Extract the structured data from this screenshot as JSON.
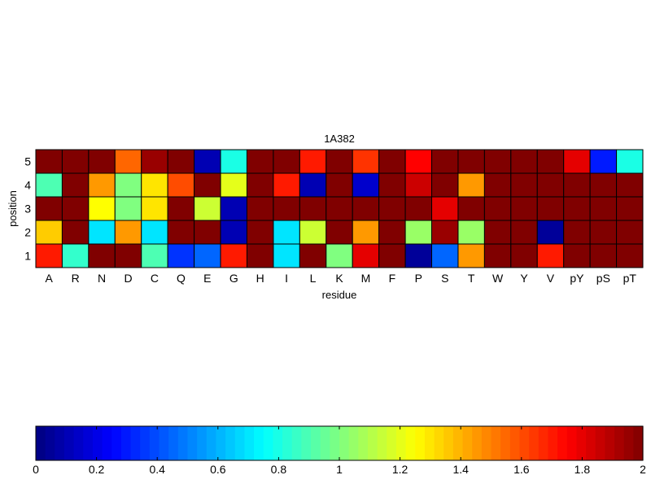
{
  "chart_data": {
    "type": "heatmap",
    "title": "1A382",
    "xlabel": "residue",
    "ylabel": "position",
    "x": [
      "A",
      "R",
      "N",
      "D",
      "C",
      "Q",
      "E",
      "G",
      "H",
      "I",
      "L",
      "K",
      "M",
      "F",
      "P",
      "S",
      "T",
      "W",
      "Y",
      "V",
      "pY",
      "pS",
      "pT"
    ],
    "y": [
      "5",
      "4",
      "3",
      "2",
      "1"
    ],
    "values": [
      [
        2.0,
        2.0,
        2.0,
        1.55,
        1.95,
        2.0,
        0.1,
        0.8,
        2.0,
        2.0,
        1.7,
        2.0,
        1.65,
        2.0,
        1.75,
        2.0,
        2.0,
        2.0,
        2.0,
        2.0,
        1.8,
        0.3,
        0.8
      ],
      [
        0.9,
        2.0,
        1.45,
        1.0,
        1.3,
        1.6,
        2.0,
        1.2,
        2.0,
        1.7,
        0.1,
        2.0,
        0.15,
        2.0,
        1.85,
        2.0,
        1.45,
        2.0,
        2.0,
        2.0,
        2.0,
        2.0,
        2.0
      ],
      [
        2.0,
        2.0,
        1.25,
        1.0,
        1.3,
        2.0,
        1.15,
        0.1,
        2.0,
        2.0,
        2.0,
        2.0,
        2.0,
        2.0,
        2.0,
        1.8,
        2.0,
        2.0,
        2.0,
        2.0,
        2.0,
        2.0,
        2.0
      ],
      [
        1.35,
        2.0,
        0.7,
        1.45,
        0.7,
        2.0,
        2.0,
        0.1,
        2.0,
        0.7,
        1.15,
        2.0,
        1.45,
        2.0,
        1.05,
        1.95,
        1.05,
        2.0,
        2.0,
        0.05,
        2.0,
        2.0,
        2.0
      ],
      [
        1.7,
        0.85,
        2.0,
        2.0,
        0.9,
        0.35,
        0.45,
        1.7,
        2.0,
        0.7,
        2.0,
        1.0,
        1.8,
        2.0,
        0.05,
        0.45,
        1.45,
        2.0,
        2.0,
        1.7,
        2.0,
        2.0,
        2.0
      ]
    ],
    "colorbar": {
      "min": 0,
      "max": 2,
      "colormap": "jet",
      "ticks": [
        "0",
        "0.2",
        "0.4",
        "0.6",
        "0.8",
        "1",
        "1.2",
        "1.4",
        "1.6",
        "1.8",
        "2"
      ]
    },
    "grid": true
  }
}
